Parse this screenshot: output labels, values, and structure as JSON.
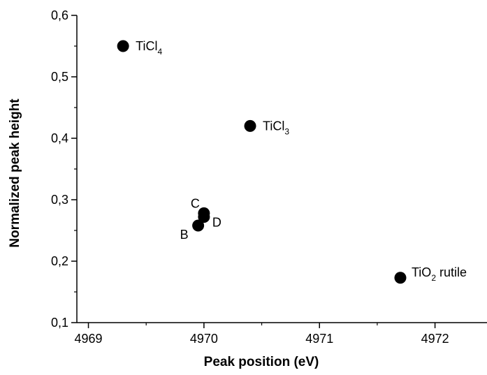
{
  "chart_data": {
    "type": "scatter",
    "title": "",
    "xlabel": "Peak position (eV)",
    "ylabel": "Normalized peak height",
    "xlim": [
      4968.9,
      4972.45
    ],
    "ylim": [
      0.1,
      0.6
    ],
    "x_ticks": [
      4969,
      4970,
      4971,
      4972
    ],
    "x_tick_labels": [
      "4969",
      "4970",
      "4971",
      "4972"
    ],
    "y_ticks": [
      0.1,
      0.2,
      0.3,
      0.4,
      0.5,
      0.6
    ],
    "y_tick_labels": [
      "0,1",
      "0,2",
      "0,3",
      "0,4",
      "0,5",
      "0,6"
    ],
    "grid": false,
    "marker_color": "#000000",
    "points": [
      {
        "x": 4969.3,
        "y": 0.55,
        "label": "TiCl",
        "sub": "4",
        "suffix": ""
      },
      {
        "x": 4970.4,
        "y": 0.42,
        "label": "TiCl",
        "sub": "3",
        "suffix": ""
      },
      {
        "x": 4970.0,
        "y": 0.278,
        "label": "C",
        "sub": "",
        "suffix": ""
      },
      {
        "x": 4970.0,
        "y": 0.272,
        "label": "D",
        "sub": "",
        "suffix": ""
      },
      {
        "x": 4969.95,
        "y": 0.258,
        "label": "B",
        "sub": "",
        "suffix": ""
      },
      {
        "x": 4971.7,
        "y": 0.173,
        "label": "TiO",
        "sub": "2",
        "suffix": " rutile"
      }
    ]
  }
}
